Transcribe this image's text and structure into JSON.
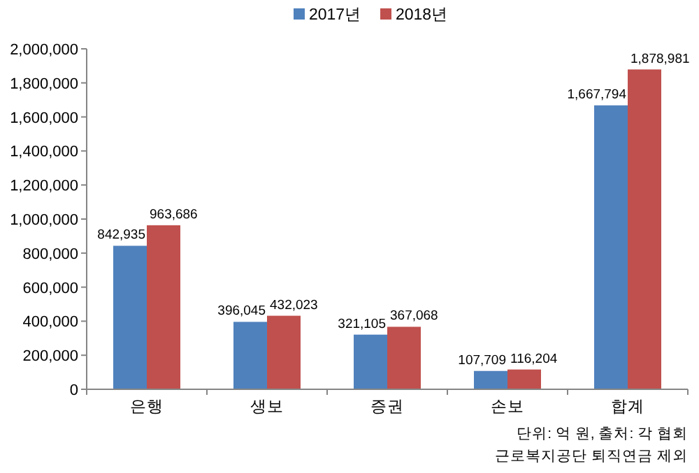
{
  "chart_data": {
    "type": "bar",
    "categories": [
      "은행",
      "생보",
      "증권",
      "손보",
      "합계"
    ],
    "series": [
      {
        "name": "2017년",
        "color": "#4f81bd",
        "values": [
          842935,
          396045,
          321105,
          107709,
          1667794
        ],
        "value_labels": [
          "842,935",
          "396,045",
          "321,105",
          "107,709",
          "1,667,794"
        ]
      },
      {
        "name": "2018년",
        "color": "#c0504d",
        "values": [
          963686,
          432023,
          367068,
          116204,
          1878981
        ],
        "value_labels": [
          "963,686",
          "432,023",
          "367,068",
          "116,204",
          "1,878,981"
        ]
      }
    ],
    "ylim": [
      0,
      2000000
    ],
    "yticks": [
      {
        "value": 0,
        "label": "0"
      },
      {
        "value": 200000,
        "label": "200,000"
      },
      {
        "value": 400000,
        "label": "400,000"
      },
      {
        "value": 600000,
        "label": "600,000"
      },
      {
        "value": 800000,
        "label": "800,000"
      },
      {
        "value": 1000000,
        "label": "1,000,000"
      },
      {
        "value": 1200000,
        "label": "1,200,000"
      },
      {
        "value": 1400000,
        "label": "1,400,000"
      },
      {
        "value": 1600000,
        "label": "1,600,000"
      },
      {
        "value": 1800000,
        "label": "1,800,000"
      },
      {
        "value": 2000000,
        "label": "2,000,000"
      }
    ],
    "legend": "top",
    "annotations": [
      "단위: 억 원, 출처: 각 협회",
      "근로복지공단 퇴직연금 제외"
    ]
  }
}
